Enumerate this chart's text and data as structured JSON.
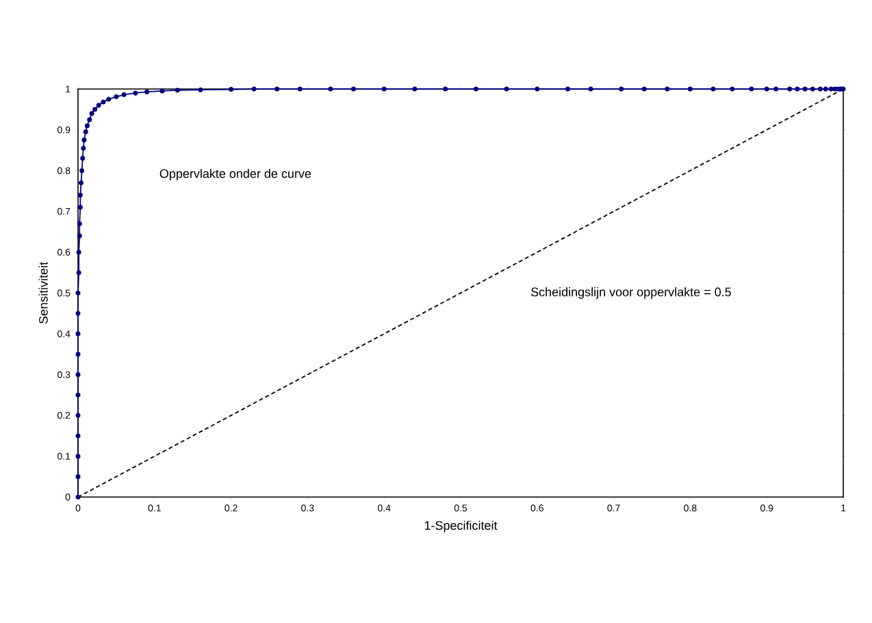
{
  "chart_data": {
    "type": "line",
    "xlabel": "1-Specificiteit",
    "ylabel": "Sensitiviteit",
    "annotations": [
      "Oppervlakte onder de curve"
    ],
    "series": [
      {
        "color": "#000080",
        "marker": "circle",
        "line_style": "solid",
        "x": [
          0,
          0,
          0,
          0,
          0,
          0,
          0,
          0,
          0,
          0,
          0,
          0.001,
          0.001,
          0.002,
          0.002,
          0.003,
          0.003,
          0.004,
          0.005,
          0.006,
          0.007,
          0.008,
          0.01,
          0.012,
          0.015,
          0.018,
          0.022,
          0.027,
          0.033,
          0.04,
          0.05,
          0.06,
          0.075,
          0.09,
          0.11,
          0.13,
          0.16,
          0.2,
          0.23,
          0.26,
          0.29,
          0.33,
          0.36,
          0.4,
          0.44,
          0.48,
          0.52,
          0.56,
          0.6,
          0.64,
          0.67,
          0.71,
          0.74,
          0.77,
          0.8,
          0.83,
          0.855,
          0.88,
          0.9,
          0.912,
          0.93,
          0.94,
          0.95,
          0.96,
          0.97,
          0.977,
          0.984,
          0.989,
          0.993,
          0.996,
          0.998,
          1
        ],
        "values": [
          0,
          0.05,
          0.1,
          0.15,
          0.2,
          0.25,
          0.3,
          0.35,
          0.4,
          0.45,
          0.5,
          0.55,
          0.6,
          0.64,
          0.67,
          0.71,
          0.74,
          0.77,
          0.8,
          0.83,
          0.855,
          0.875,
          0.895,
          0.91,
          0.925,
          0.94,
          0.95,
          0.96,
          0.968,
          0.975,
          0.981,
          0.986,
          0.99,
          0.993,
          0.995,
          0.997,
          0.998,
          0.999,
          1,
          1,
          1,
          1,
          1,
          1,
          1,
          1,
          1,
          1,
          1,
          1,
          1,
          1,
          1,
          1,
          1,
          1,
          1,
          1,
          1,
          1,
          1,
          1,
          1,
          1,
          1,
          1,
          1,
          1,
          1,
          1,
          1,
          1
        ]
      },
      {
        "name": "Scheidingslijn voor oppervlakte = 0.5",
        "color": "#000000",
        "marker": "none",
        "line_style": "dashed",
        "x": [
          0,
          1
        ],
        "values": [
          0,
          1
        ]
      }
    ],
    "xlim": [
      0,
      1
    ],
    "ylim": [
      0,
      1
    ],
    "xticks": [
      0,
      0.1,
      0.2,
      0.3,
      0.4,
      0.5,
      0.6,
      0.7,
      0.8,
      0.9,
      1
    ],
    "yticks": [
      0,
      0.1,
      0.2,
      0.3,
      0.4,
      0.5,
      0.6,
      0.7,
      0.8,
      0.9,
      1
    ]
  }
}
